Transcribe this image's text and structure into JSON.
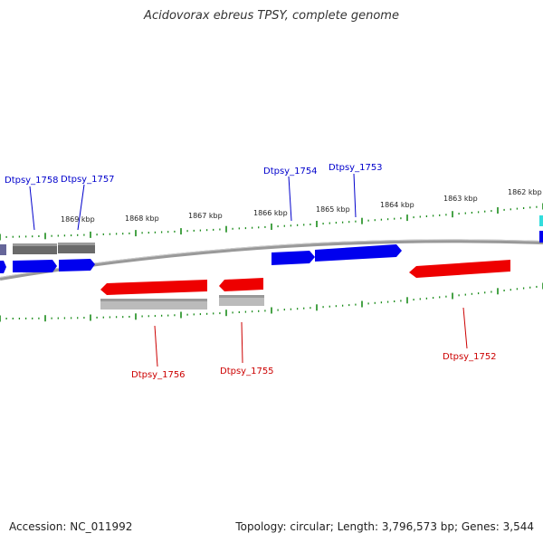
{
  "title": "Acidovorax ebreus TPSY, complete genome",
  "footer": {
    "accession": "Accession: NC_011992",
    "info": "Topology: circular; Length: 3,796,573 bp; Genes: 3,544"
  },
  "scale_labels": [
    "1869 kbp",
    "1868 kbp",
    "1867 kbp",
    "1866 kbp",
    "1865 kbp",
    "1864 kbp",
    "1863 kbp",
    "1862 kbp"
  ],
  "gene_labels": {
    "forward": [
      "Dtpsy_1758",
      "Dtpsy_1757",
      "Dtpsy_1754",
      "Dtpsy_1753"
    ],
    "reverse": [
      "Dtpsy_1756",
      "Dtpsy_1755",
      "Dtpsy_1752"
    ]
  },
  "colors": {
    "forward": "#0000ee",
    "reverse": "#ee0000",
    "forward_label": "#0000cc",
    "reverse_label": "#cc0000",
    "backbone": "#888888",
    "ticks": "#1a8c1a",
    "grey_feature": "#777777",
    "light_grey_feature": "#bbbbbb",
    "cyan_feature": "#33dddd"
  }
}
